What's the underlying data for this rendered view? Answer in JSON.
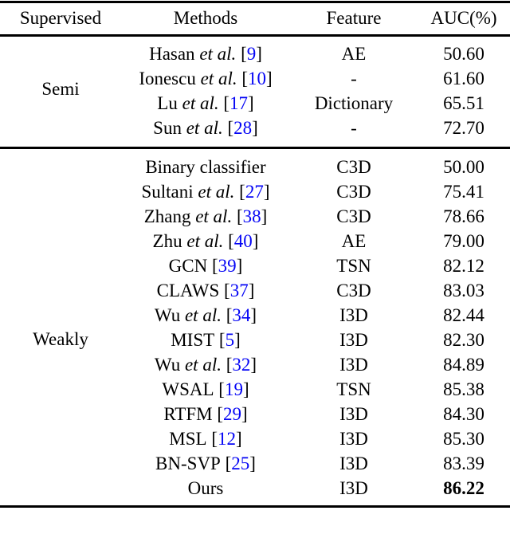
{
  "table": {
    "colors": {
      "citation": "#0505F5",
      "text": "#000000",
      "rule": "#000000",
      "background": "#ffffff"
    },
    "columns": {
      "supervised": "Supervised",
      "methods": "Methods",
      "feature": "Feature",
      "auc": "AUC(%)"
    },
    "groups": [
      {
        "label": "Semi",
        "rows": [
          {
            "name": "Hasan",
            "etal": " et al.",
            "cite_open": " [",
            "ref": "9",
            "cite_close": "]",
            "feature": "AE",
            "auc": "50.60"
          },
          {
            "name": "Ionescu",
            "etal": " et al.",
            "cite_open": " [",
            "ref": "10",
            "cite_close": "]",
            "feature": "-",
            "auc": "61.60"
          },
          {
            "name": "Lu",
            "etal": " et al.",
            "cite_open": " [",
            "ref": "17",
            "cite_close": "]",
            "feature": "Dictionary",
            "auc": "65.51"
          },
          {
            "name": "Sun",
            "etal": " et al.",
            "cite_open": " [",
            "ref": "28",
            "cite_close": "]",
            "feature": "-",
            "auc": "72.70"
          }
        ]
      },
      {
        "label": "Weakly",
        "rows": [
          {
            "name": "Binary classifier",
            "feature": "C3D",
            "auc": "50.00"
          },
          {
            "name": "Sultani",
            "etal": " et al.",
            "cite_open": " [",
            "ref": "27",
            "cite_close": "]",
            "feature": "C3D",
            "auc": "75.41"
          },
          {
            "name": "Zhang",
            "etal": " et al.",
            "cite_open": " [",
            "ref": "38",
            "cite_close": "]",
            "feature": "C3D",
            "auc": "78.66"
          },
          {
            "name": "Zhu",
            "etal": " et al.",
            "cite_open": " [",
            "ref": "40",
            "cite_close": "]",
            "feature": "AE",
            "auc": "79.00"
          },
          {
            "name": "GCN",
            "cite_open": " [",
            "ref": "39",
            "cite_close": "]",
            "feature": "TSN",
            "auc": "82.12"
          },
          {
            "name": "CLAWS",
            "cite_open": " [",
            "ref": "37",
            "cite_close": "]",
            "feature": "C3D",
            "auc": "83.03"
          },
          {
            "name": "Wu",
            "etal": " et al.",
            "cite_open": " [",
            "ref": "34",
            "cite_close": "]",
            "feature": "I3D",
            "auc": "82.44"
          },
          {
            "name": "MIST",
            "cite_open": " [",
            "ref": "5",
            "cite_close": "]",
            "feature": "I3D",
            "auc": "82.30"
          },
          {
            "name": "Wu",
            "etal": " et al.",
            "cite_open": " [",
            "ref": "32",
            "cite_close": "]",
            "feature": "I3D",
            "auc": "84.89"
          },
          {
            "name": "WSAL",
            "cite_open": " [",
            "ref": "19",
            "cite_close": "]",
            "feature": "TSN",
            "auc": "85.38"
          },
          {
            "name": "RTFM",
            "cite_open": " [",
            "ref": "29",
            "cite_close": "]",
            "feature": "I3D",
            "auc": "84.30"
          },
          {
            "name": "MSL",
            "cite_open": " [",
            "ref": "12",
            "cite_close": "]",
            "feature": "I3D",
            "auc": "85.30"
          },
          {
            "name": "BN-SVP",
            "cite_open": " [",
            "ref": "25",
            "cite_close": "]",
            "feature": "I3D",
            "auc": "83.39"
          },
          {
            "name": "Ours",
            "feature": "I3D",
            "auc": "86.22"
          }
        ]
      }
    ]
  }
}
